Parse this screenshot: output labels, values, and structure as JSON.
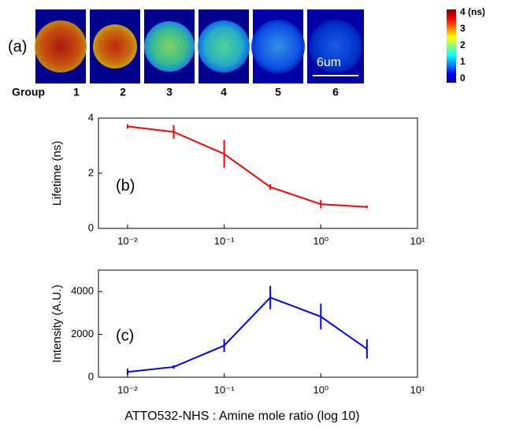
{
  "panel_a": {
    "label": "(a)",
    "group_label": "Group",
    "groups": [
      "1",
      "2",
      "3",
      "4",
      "5",
      "6"
    ],
    "scale_bar": "6um",
    "colorbar_labels": [
      "4 (ns)",
      "3",
      "2",
      "1",
      "0"
    ]
  },
  "chart_data": [
    {
      "type": "line",
      "label": "(b)",
      "ylabel": "Lifetime (ns)",
      "xscale": "log",
      "x": [
        0.01,
        0.03,
        0.1,
        0.3,
        1,
        3
      ],
      "series": [
        {
          "color": "#ff0000",
          "values": [
            3.7,
            3.5,
            2.7,
            1.5,
            0.88,
            0.78
          ],
          "errors": [
            0.08,
            0.25,
            0.5,
            0.1,
            0.15,
            0.05
          ]
        }
      ],
      "xlim": [
        0.005,
        10
      ],
      "ylim": [
        0,
        4
      ],
      "yticks": [
        0,
        2,
        4
      ],
      "xticks": [
        {
          "value": 0.01,
          "label": "10⁻²"
        },
        {
          "value": 0.1,
          "label": "10⁻¹"
        },
        {
          "value": 1,
          "label": "10⁰"
        },
        {
          "value": 10,
          "label": "10¹"
        }
      ]
    },
    {
      "type": "line",
      "label": "(c)",
      "ylabel": "Intensity (A.U.)",
      "xlabel": "ATTO532-NHS : Amine mole ratio (log 10)",
      "xscale": "log",
      "x": [
        0.01,
        0.03,
        0.1,
        0.3,
        1,
        3
      ],
      "series": [
        {
          "color": "#0000ff",
          "values": [
            250,
            480,
            1480,
            3720,
            2830,
            1320
          ],
          "errors": [
            150,
            80,
            300,
            550,
            600,
            450
          ]
        }
      ],
      "xlim": [
        0.005,
        10
      ],
      "ylim": [
        0,
        5000
      ],
      "yticks": [
        0,
        2000,
        4000
      ],
      "xticks": [
        {
          "value": 0.01,
          "label": "10⁻²"
        },
        {
          "value": 0.1,
          "label": "10⁻¹"
        },
        {
          "value": 1,
          "label": "10⁰"
        },
        {
          "value": 10,
          "label": "10¹"
        }
      ]
    }
  ]
}
